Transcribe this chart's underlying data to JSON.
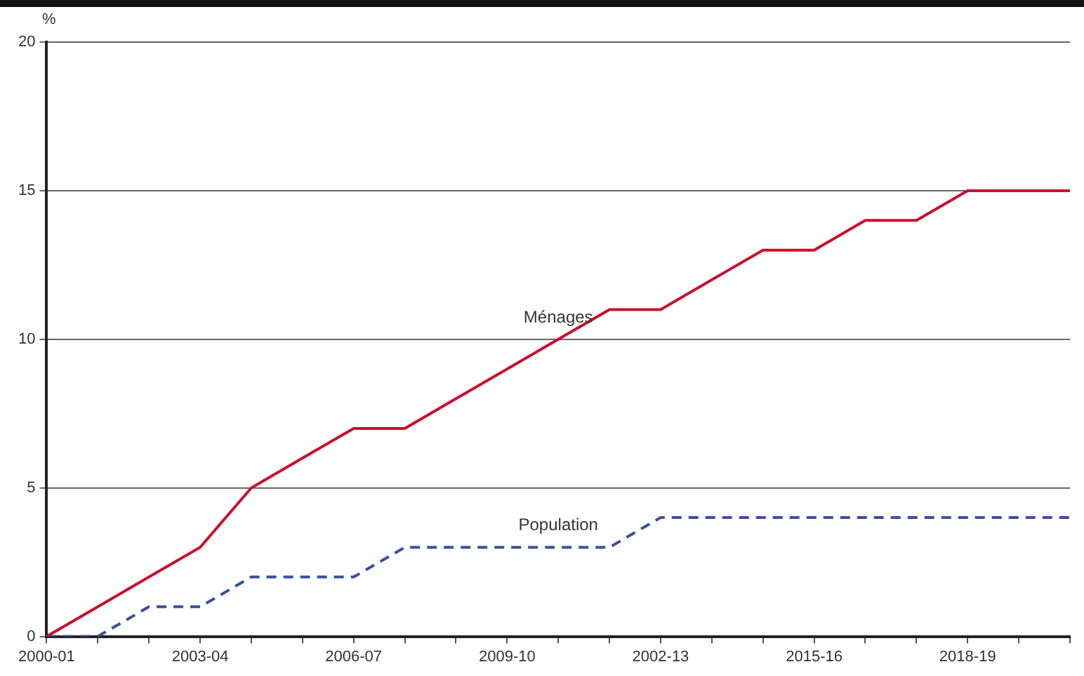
{
  "chart_data": {
    "type": "line",
    "ylabel": "%",
    "categories": [
      "2000-01",
      null,
      null,
      "2003-04",
      null,
      null,
      "2006-07",
      null,
      null,
      "2009-10",
      null,
      null,
      "2002-13",
      null,
      null,
      "2015-16",
      null,
      null,
      "2018-19",
      null,
      null
    ],
    "series": [
      {
        "name": "Ménages",
        "color": "#c8102e",
        "values": [
          0,
          1,
          2,
          3,
          5,
          6,
          7,
          7,
          8,
          9,
          10,
          11,
          11,
          12,
          13,
          13,
          14,
          14,
          15,
          15,
          15
        ]
      },
      {
        "name": "Population",
        "color": "#3a4fa0",
        "line_style": "dashed",
        "values": [
          0,
          0,
          1,
          1,
          2,
          2,
          2,
          3,
          3,
          3,
          3,
          3,
          4,
          4,
          4,
          4,
          4,
          4,
          4,
          4,
          4
        ]
      }
    ],
    "ylim": [
      0,
      20
    ],
    "yticks": [
      0,
      5,
      10,
      15,
      20
    ],
    "grid": "y",
    "legend": false,
    "marker": "none"
  }
}
